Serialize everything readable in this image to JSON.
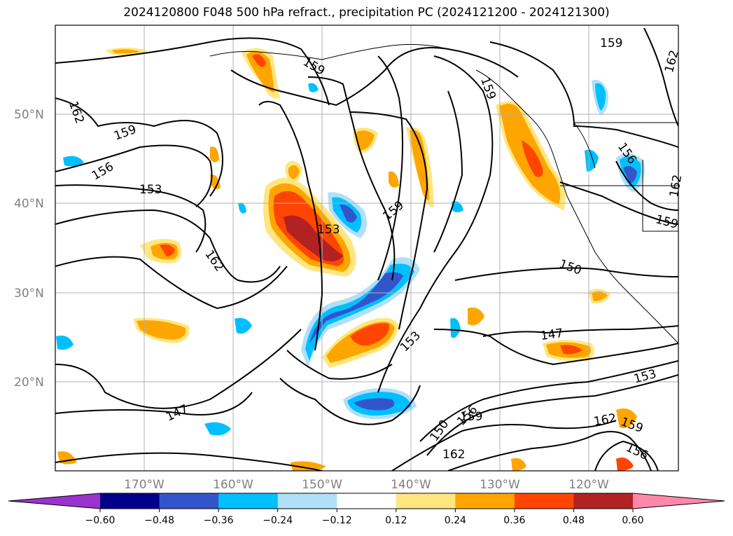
{
  "title": "2024120800 F048 500 hPa refract., precipitation PC (2024121200 - 2024121300)",
  "lat_labels": [
    "50°N",
    "40°N",
    "30°N",
    "20°N"
  ],
  "lon_labels": [
    "170°W",
    "160°W",
    "150°W",
    "140°W",
    "130°W",
    "120°W"
  ],
  "contour_labels": [
    {
      "text": "159",
      "id": "a"
    },
    {
      "text": "162",
      "id": "b"
    },
    {
      "text": "159",
      "id": "c"
    },
    {
      "text": "156",
      "id": "d"
    },
    {
      "text": "153",
      "id": "e"
    },
    {
      "text": "162",
      "id": "f"
    },
    {
      "text": "153",
      "id": "g"
    },
    {
      "text": "159",
      "id": "h"
    },
    {
      "text": "159",
      "id": "i"
    },
    {
      "text": "162",
      "id": "j"
    },
    {
      "text": "159",
      "id": "k"
    },
    {
      "text": "156",
      "id": "l"
    },
    {
      "text": "162",
      "id": "m"
    },
    {
      "text": "159",
      "id": "n"
    },
    {
      "text": "150",
      "id": "o"
    },
    {
      "text": "147",
      "id": "p"
    },
    {
      "text": "153",
      "id": "q"
    },
    {
      "text": "147",
      "id": "r"
    },
    {
      "text": "153",
      "id": "s"
    },
    {
      "text": "150",
      "id": "t"
    },
    {
      "text": "156",
      "id": "u"
    },
    {
      "text": "159",
      "id": "v"
    },
    {
      "text": "162",
      "id": "w"
    },
    {
      "text": "162",
      "id": "x"
    },
    {
      "text": "159",
      "id": "y"
    },
    {
      "text": "156",
      "id": "z"
    }
  ],
  "colorbar": {
    "colors": [
      "#9933cc",
      "#00008b",
      "#3355cc",
      "#00bfff",
      "#b0e0f8",
      "#ffffff",
      "#ffe680",
      "#ffa500",
      "#ff4500",
      "#b22222",
      "#ff88aa"
    ],
    "labels": [
      "−0.60",
      "−0.48",
      "−0.36",
      "−0.24",
      "−0.12",
      "0.12",
      "0.24",
      "0.36",
      "0.48",
      "0.60"
    ]
  }
}
